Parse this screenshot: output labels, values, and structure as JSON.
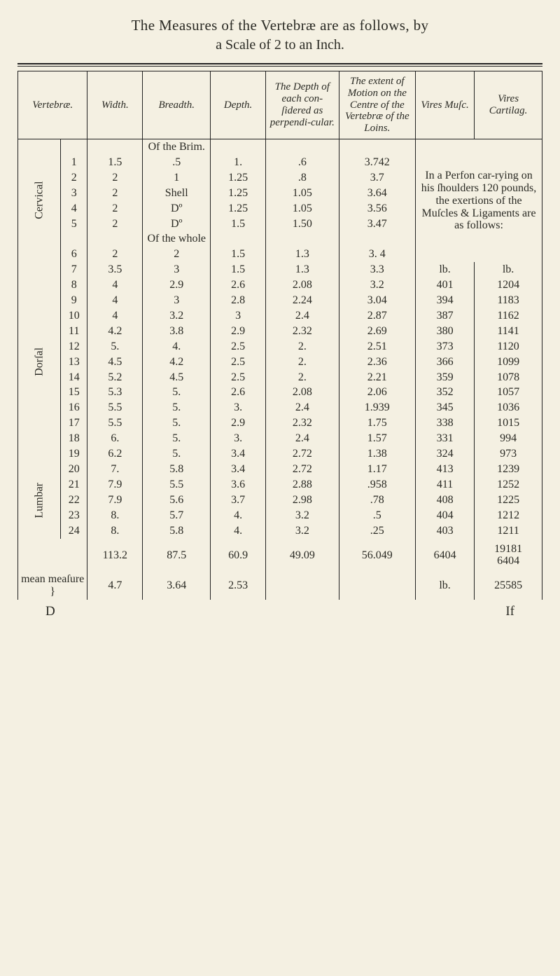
{
  "title": "The Measures of the Vertebræ are as follows, by",
  "subtitle": "a Scale of 2 to an Inch.",
  "headers": {
    "c0a": "Vertebræ.",
    "c2": "Width.",
    "c3": "Breadth.",
    "c4": "Depth.",
    "c5": "The Depth of each con-ſidered as perpendi-cular.",
    "c6": "The extent of Motion on the Centre of the Vertebræ of the Loins.",
    "c7": "Vires Muſc.",
    "c8": "Vires Cartilag."
  },
  "annotations": {
    "of_brim": "Of the Brim.",
    "of_whole": "Of the whole",
    "perfon_note": "In a Perfon car-rying on his ſhoulders 120 pounds, the exertions of the Muſcles & Ligaments are as follows:",
    "lb1": "lb.",
    "lb2": "lb."
  },
  "sections": {
    "cervical": "Cervical",
    "dorsal": "Dorſal",
    "lumbar": "Lumbar"
  },
  "rows": [
    {
      "n": "1",
      "w": "1.5",
      "b": ".5",
      "d": "1.",
      "p": ".6",
      "ext": "3.742"
    },
    {
      "n": "2",
      "w": "2",
      "b": "1",
      "d": "1.25",
      "p": ".8",
      "ext": "3.7"
    },
    {
      "n": "3",
      "w": "2",
      "b": "Shell",
      "d": "1.25",
      "p": "1.05",
      "ext": "3.64"
    },
    {
      "n": "4",
      "w": "2",
      "b": "Dº",
      "d": "1.25",
      "p": "1.05",
      "ext": "3.56"
    },
    {
      "n": "5",
      "w": "2",
      "b": "Dº",
      "d": "1.5",
      "p": "1.50",
      "ext": "3.47"
    },
    {
      "n": "6",
      "w": "2",
      "b": "2",
      "d": "1.5",
      "p": "1.3",
      "ext": "3. 4"
    },
    {
      "n": "7",
      "w": "3.5",
      "b": "3",
      "d": "1.5",
      "p": "1.3",
      "ext": "3.3"
    },
    {
      "n": "8",
      "w": "4",
      "b": "2.9",
      "d": "2.6",
      "p": "2.08",
      "ext": "3.2",
      "vm": "401",
      "vc": "1204"
    },
    {
      "n": "9",
      "w": "4",
      "b": "3",
      "d": "2.8",
      "p": "2.24",
      "ext": "3.04",
      "vm": "394",
      "vc": "1183"
    },
    {
      "n": "10",
      "w": "4",
      "b": "3.2",
      "d": "3",
      "p": "2.4",
      "ext": "2.87",
      "vm": "387",
      "vc": "1162"
    },
    {
      "n": "11",
      "w": "4.2",
      "b": "3.8",
      "d": "2.9",
      "p": "2.32",
      "ext": "2.69",
      "vm": "380",
      "vc": "1141"
    },
    {
      "n": "12",
      "w": "5.",
      "b": "4.",
      "d": "2.5",
      "p": "2.",
      "ext": "2.51",
      "vm": "373",
      "vc": "1120"
    },
    {
      "n": "13",
      "w": "4.5",
      "b": "4.2",
      "d": "2.5",
      "p": "2.",
      "ext": "2.36",
      "vm": "366",
      "vc": "1099"
    },
    {
      "n": "14",
      "w": "5.2",
      "b": "4.5",
      "d": "2.5",
      "p": "2.",
      "ext": "2.21",
      "vm": "359",
      "vc": "1078"
    },
    {
      "n": "15",
      "w": "5.3",
      "b": "5.",
      "d": "2.6",
      "p": "2.08",
      "ext": "2.06",
      "vm": "352",
      "vc": "1057"
    },
    {
      "n": "16",
      "w": "5.5",
      "b": "5.",
      "d": "3.",
      "p": "2.4",
      "ext": "1.939",
      "vm": "345",
      "vc": "1036"
    },
    {
      "n": "17",
      "w": "5.5",
      "b": "5.",
      "d": "2.9",
      "p": "2.32",
      "ext": "1.75",
      "vm": "338",
      "vc": "1015"
    },
    {
      "n": "18",
      "w": "6.",
      "b": "5.",
      "d": "3.",
      "p": "2.4",
      "ext": "1.57",
      "vm": "331",
      "vc": "994"
    },
    {
      "n": "19",
      "w": "6.2",
      "b": "5.",
      "d": "3.4",
      "p": "2.72",
      "ext": "1.38",
      "vm": "324",
      "vc": "973"
    },
    {
      "n": "20",
      "w": "7.",
      "b": "5.8",
      "d": "3.4",
      "p": "2.72",
      "ext": "1.17",
      "vm": "413",
      "vc": "1239"
    },
    {
      "n": "21",
      "w": "7.9",
      "b": "5.5",
      "d": "3.6",
      "p": "2.88",
      "ext": ".958",
      "vm": "411",
      "vc": "1252"
    },
    {
      "n": "22",
      "w": "7.9",
      "b": "5.6",
      "d": "3.7",
      "p": "2.98",
      "ext": ".78",
      "vm": "408",
      "vc": "1225"
    },
    {
      "n": "23",
      "w": "8.",
      "b": "5.7",
      "d": "4.",
      "p": "3.2",
      "ext": ".5",
      "vm": "404",
      "vc": "1212"
    },
    {
      "n": "24",
      "w": "8.",
      "b": "5.8",
      "d": "4.",
      "p": "3.2",
      "ext": ".25",
      "vm": "403",
      "vc": "1211"
    }
  ],
  "sums": {
    "w": "113.2",
    "b": "87.5",
    "d": "60.9",
    "p": "49.09",
    "ext": "56.049",
    "vm": "6404",
    "vc_a": "19181",
    "vc_b": "6404"
  },
  "mean": {
    "label": "mean meaſure }",
    "w": "4.7",
    "b": "3.64",
    "d": "2.53",
    "vc_lbl": "lb.",
    "vc": "25585"
  },
  "footer": {
    "left": "D",
    "right": "If"
  }
}
